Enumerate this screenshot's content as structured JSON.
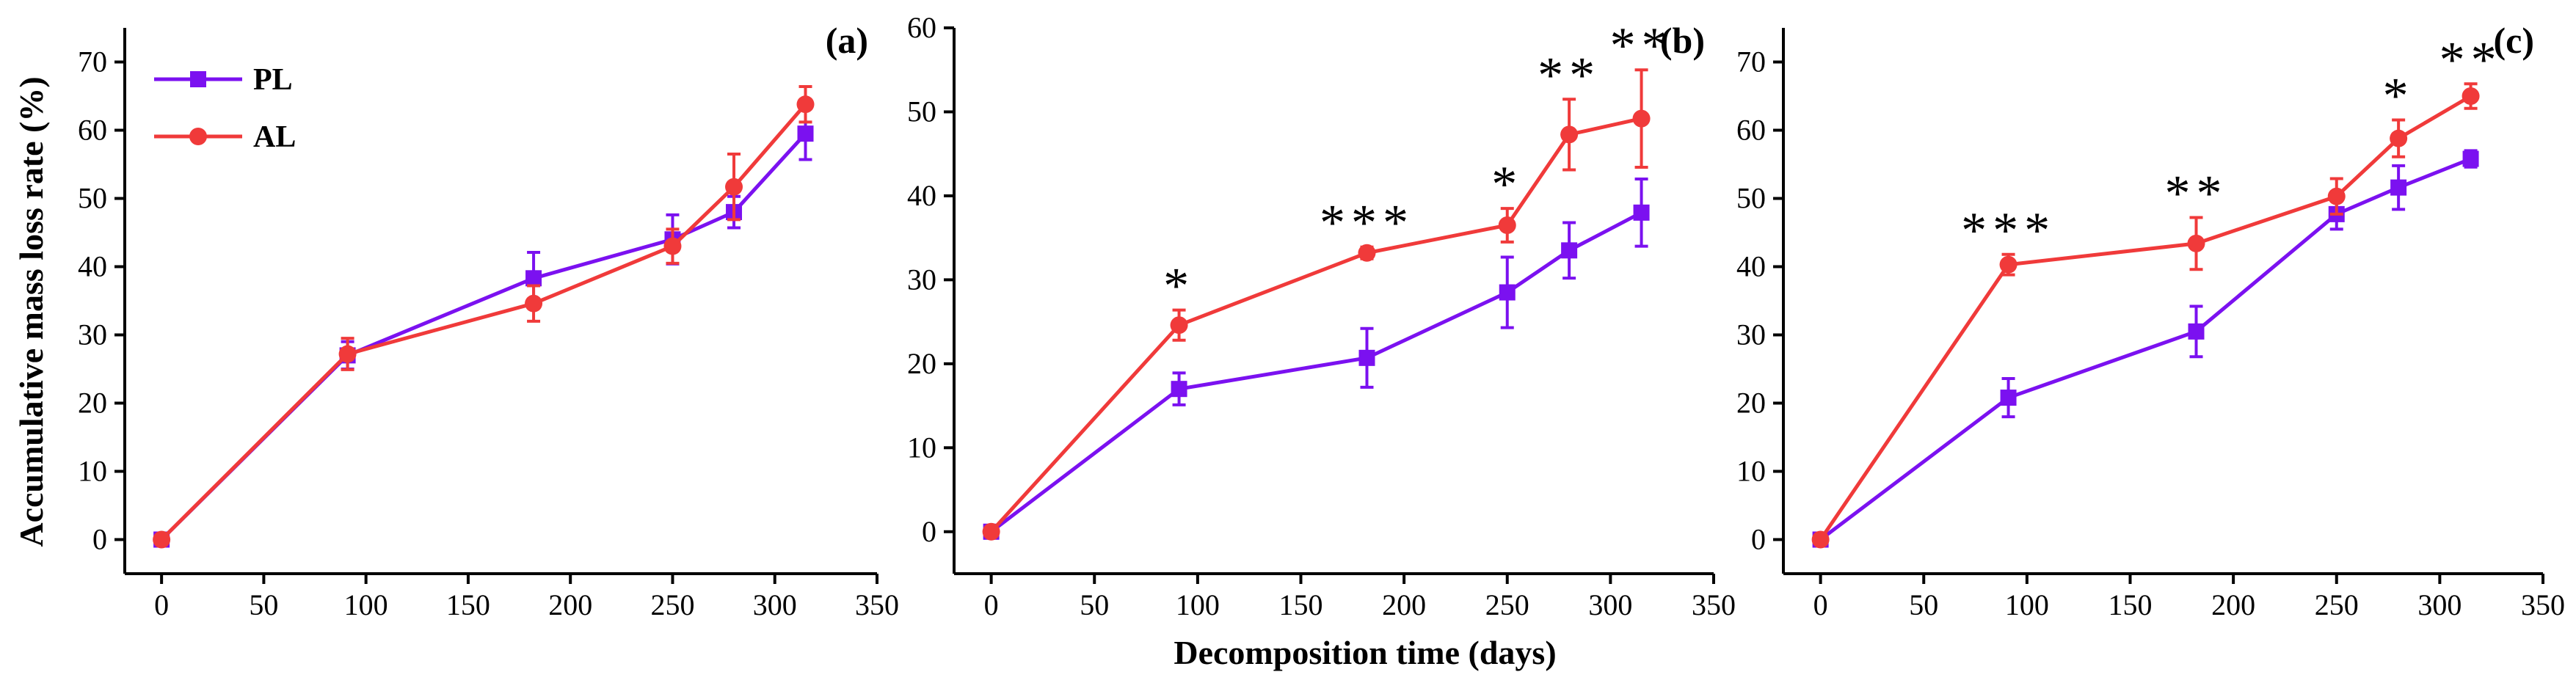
{
  "colors": {
    "PL": "#7B11F0",
    "AL": "#F03A3A",
    "axis": "#000000"
  },
  "ylabel": "Accumulative mass loss rate (%)",
  "xlabel": "Decomposition time (days)",
  "legend": {
    "position": "top-left",
    "items": [
      "PL",
      "AL"
    ]
  },
  "chart_data": [
    {
      "type": "line",
      "panel_label": "(a)",
      "x": [
        0,
        91,
        182,
        250,
        280,
        315
      ],
      "xlim": [
        -18,
        350
      ],
      "ylim": [
        -5,
        75
      ],
      "xticks": [
        0,
        50,
        100,
        150,
        200,
        250,
        300,
        350
      ],
      "yticks": [
        0,
        10,
        20,
        30,
        40,
        50,
        60,
        70
      ],
      "grid": false,
      "series": [
        {
          "name": "PL",
          "marker": "square",
          "values": [
            0,
            27,
            38.3,
            44,
            48,
            59.5
          ],
          "errors": [
            0,
            2.0,
            3.8,
            3.6,
            2.3,
            3.8
          ]
        },
        {
          "name": "AL",
          "marker": "circle",
          "values": [
            0,
            27.2,
            34.6,
            43,
            51.7,
            63.8
          ],
          "errors": [
            0,
            2.3,
            2.6,
            2.5,
            4.8,
            2.6
          ]
        }
      ],
      "annotations": []
    },
    {
      "type": "line",
      "panel_label": "(b)",
      "x": [
        0,
        91,
        182,
        250,
        280,
        315
      ],
      "xlim": [
        -18,
        350
      ],
      "ylim": [
        -5,
        60
      ],
      "xticks": [
        0,
        50,
        100,
        150,
        200,
        250,
        300,
        350
      ],
      "yticks": [
        0,
        10,
        20,
        30,
        40,
        50,
        60
      ],
      "grid": false,
      "series": [
        {
          "name": "PL",
          "marker": "square",
          "values": [
            0,
            17,
            20.7,
            28.5,
            33.5,
            38
          ],
          "errors": [
            0,
            1.9,
            3.5,
            4.2,
            3.3,
            4.0
          ]
        },
        {
          "name": "AL",
          "marker": "circle",
          "values": [
            0,
            24.6,
            33.2,
            36.5,
            47.3,
            49.2
          ],
          "errors": [
            0,
            1.8,
            0.7,
            2.0,
            4.2,
            5.8
          ]
        }
      ],
      "annotations": [
        {
          "x": 91,
          "text": "*"
        },
        {
          "x": 182,
          "text": "***"
        },
        {
          "x": 250,
          "text": "*"
        },
        {
          "x": 280,
          "text": "**"
        },
        {
          "x": 315,
          "text": "**"
        }
      ]
    },
    {
      "type": "line",
      "panel_label": "(c)",
      "x": [
        0,
        91,
        182,
        250,
        280,
        315
      ],
      "xlim": [
        -18,
        350
      ],
      "ylim": [
        -5,
        75
      ],
      "xticks": [
        0,
        50,
        100,
        150,
        200,
        250,
        300,
        350
      ],
      "yticks": [
        0,
        10,
        20,
        30,
        40,
        50,
        60,
        70
      ],
      "grid": false,
      "series": [
        {
          "name": "PL",
          "marker": "square",
          "values": [
            0,
            20.8,
            30.5,
            47.7,
            51.6,
            55.8
          ],
          "errors": [
            0,
            2.8,
            3.7,
            2.2,
            3.2,
            1.2
          ]
        },
        {
          "name": "AL",
          "marker": "circle",
          "values": [
            0,
            40.3,
            43.4,
            50.3,
            58.8,
            65
          ],
          "errors": [
            0,
            1.5,
            3.8,
            2.6,
            2.7,
            1.8
          ]
        }
      ],
      "annotations": [
        {
          "x": 91,
          "text": "***"
        },
        {
          "x": 182,
          "text": "**"
        },
        {
          "x": 280,
          "text": "*"
        },
        {
          "x": 315,
          "text": "**"
        }
      ]
    }
  ]
}
